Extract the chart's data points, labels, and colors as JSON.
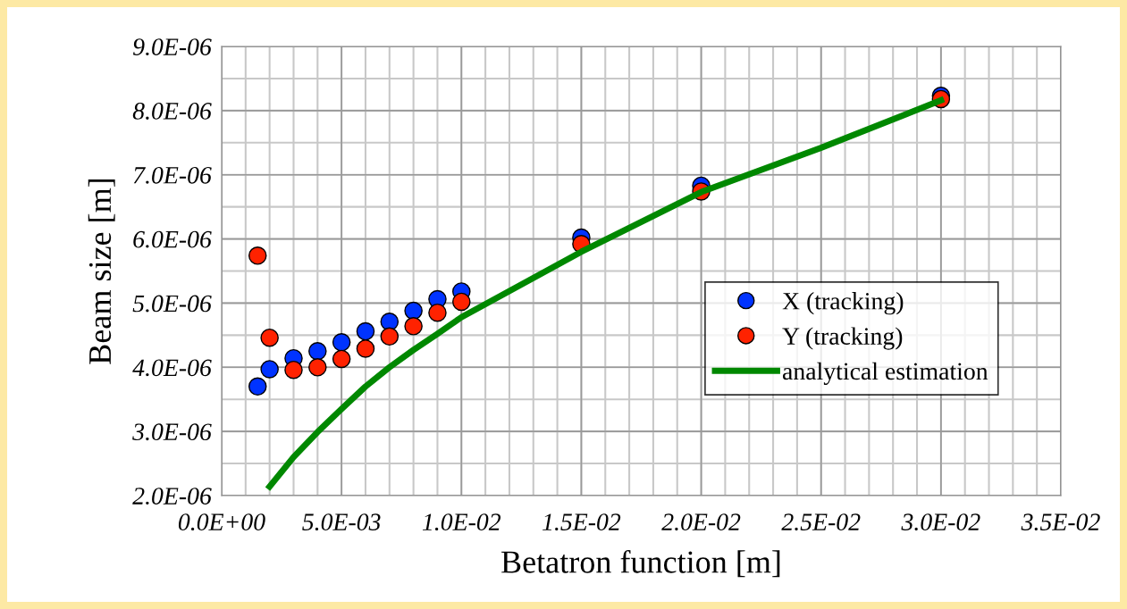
{
  "chart_data": {
    "type": "scatter",
    "xlabel": "Betatron function [m]",
    "ylabel": "Beam size [m]",
    "xlim": [
      0,
      0.035
    ],
    "ylim": [
      2e-06,
      9e-06
    ],
    "xticks": [
      {
        "value": 0,
        "label": "0.0E+00"
      },
      {
        "value": 0.005,
        "label": "5.0E-03"
      },
      {
        "value": 0.01,
        "label": "1.0E-02"
      },
      {
        "value": 0.015,
        "label": "1.5E-02"
      },
      {
        "value": 0.02,
        "label": "2.0E-02"
      },
      {
        "value": 0.025,
        "label": "2.5E-02"
      },
      {
        "value": 0.03,
        "label": "3.0E-02"
      },
      {
        "value": 0.035,
        "label": "3.5E-02"
      }
    ],
    "yticks": [
      {
        "value": 2e-06,
        "label": "2.0E-06"
      },
      {
        "value": 3e-06,
        "label": "3.0E-06"
      },
      {
        "value": 4e-06,
        "label": "4.0E-06"
      },
      {
        "value": 5e-06,
        "label": "5.0E-06"
      },
      {
        "value": 6e-06,
        "label": "6.0E-06"
      },
      {
        "value": 7e-06,
        "label": "7.0E-06"
      },
      {
        "value": 8e-06,
        "label": "8.0E-06"
      },
      {
        "value": 9e-06,
        "label": "9.0E-06"
      }
    ],
    "grid": true,
    "legend": "right",
    "series": [
      {
        "name": "X (tracking)",
        "marker": "circle",
        "color": "#0033ff",
        "x": [
          0.0015,
          0.002,
          0.003,
          0.004,
          0.005,
          0.006,
          0.007,
          0.008,
          0.009,
          0.01,
          0.015,
          0.02,
          0.03
        ],
        "values": [
          3.7e-06,
          3.97e-06,
          4.14e-06,
          4.25e-06,
          4.39e-06,
          4.56e-06,
          4.71e-06,
          4.88e-06,
          5.06e-06,
          5.18e-06,
          6.02e-06,
          6.83e-06,
          8.23e-06
        ]
      },
      {
        "name": "Y (tracking)",
        "marker": "circle",
        "color": "#ff2200",
        "x": [
          0.0015,
          0.002,
          0.003,
          0.004,
          0.005,
          0.006,
          0.007,
          0.008,
          0.009,
          0.01,
          0.015,
          0.02,
          0.03
        ],
        "values": [
          5.74e-06,
          4.46e-06,
          3.96e-06,
          4e-06,
          4.13e-06,
          4.29e-06,
          4.48e-06,
          4.64e-06,
          4.85e-06,
          5.02e-06,
          5.92e-06,
          6.74e-06,
          8.18e-06
        ]
      },
      {
        "name": "analytical estimation",
        "type": "line",
        "marker": "none",
        "color": "#008800",
        "x": [
          0.002,
          0.003,
          0.004,
          0.005,
          0.006,
          0.007,
          0.008,
          0.009,
          0.01,
          0.015,
          0.02,
          0.025,
          0.03
        ],
        "values": [
          2.14e-06,
          2.6e-06,
          2.99e-06,
          3.35e-06,
          3.7e-06,
          4e-06,
          4.27e-06,
          4.52e-06,
          4.78e-06,
          5.8e-06,
          6.73e-06,
          7.42e-06,
          8.16e-06
        ]
      }
    ]
  }
}
